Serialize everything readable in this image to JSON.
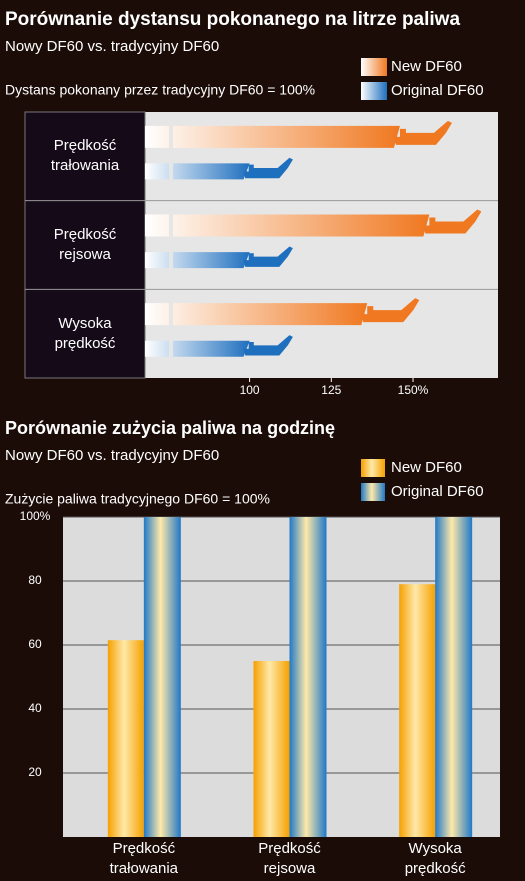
{
  "chart_data": [
    {
      "type": "barh",
      "title": "Porównanie dystansu pokonanego na litrze paliwa",
      "subtitle": "Nowy DF60 vs. tradycyjny DF60",
      "note": "Dystans pokonany przez tradycyjny DF60 = 100%",
      "categories": [
        "Prędkość trałowania",
        "Prędkość rejsowa",
        "Wysoka prędkość"
      ],
      "series": [
        {
          "name": "New DF60",
          "color": "#f07820",
          "values": [
            146,
            155,
            136
          ]
        },
        {
          "name": "Original DF60",
          "color": "#1f6fbf",
          "values": [
            100,
            100,
            100
          ]
        }
      ],
      "xlim": [
        68,
        176
      ],
      "xticks": [
        100,
        125,
        {
          "value": 150,
          "label": "150%"
        }
      ]
    },
    {
      "type": "bar",
      "title": "Porównanie zużycia paliwa na godzinę",
      "subtitle": "Nowy DF60 vs. tradycyjny DF60",
      "note": "Zużycie paliwa tradycyjnego DF60 = 100%",
      "categories": [
        "Prędkość trałowania",
        "Prędkość rejsowa",
        "Wysoka prędkość"
      ],
      "series": [
        {
          "name": "New DF60",
          "color": "#f5a000",
          "values": [
            61.5,
            55,
            79
          ]
        },
        {
          "name": "Original DF60",
          "color": "#1f78c8",
          "values": [
            100,
            100,
            100
          ]
        }
      ],
      "ylim": [
        0,
        100
      ],
      "yticks": [
        20,
        40,
        60,
        80,
        {
          "value": 100,
          "label": "100%"
        }
      ],
      "grid": true
    }
  ]
}
